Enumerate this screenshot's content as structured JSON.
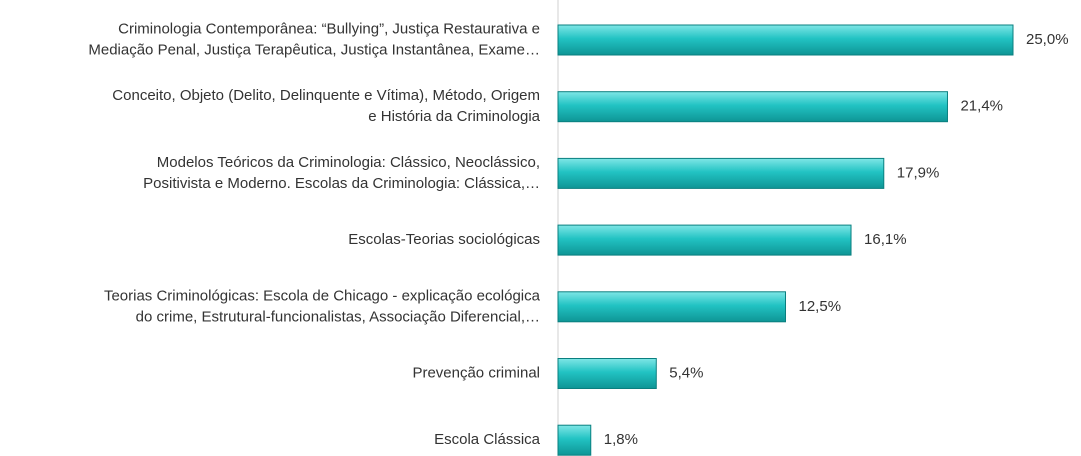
{
  "chart_data": {
    "type": "bar",
    "orientation": "horizontal",
    "categories": [
      "Criminologia Contemporânea: “Bullying”, Justiça Restaurativa e\nMediação Penal, Justiça Terapêutica, Justiça Instantânea, Exame…",
      "Conceito, Objeto (Delito, Delinquente e Vítima), Método, Origem\ne História da Criminologia",
      "Modelos Teóricos da Criminologia: Clássico, Neoclássico,\nPositivista e Moderno. Escolas da Criminologia: Clássica,…",
      "Escolas-Teorias sociológicas",
      "Teorias Criminológicas: Escola de Chicago - explicação ecológica\ndo crime, Estrutural-funcionalistas, Associação Diferencial,…",
      "Prevenção criminal",
      "Escola Clássica"
    ],
    "values": [
      25.0,
      21.4,
      17.9,
      16.1,
      12.5,
      5.4,
      1.8
    ],
    "value_labels": [
      "25,0%",
      "21,4%",
      "17,9%",
      "16,1%",
      "12,5%",
      "5,4%",
      "1,8%"
    ],
    "color": "#20c0c0"
  }
}
